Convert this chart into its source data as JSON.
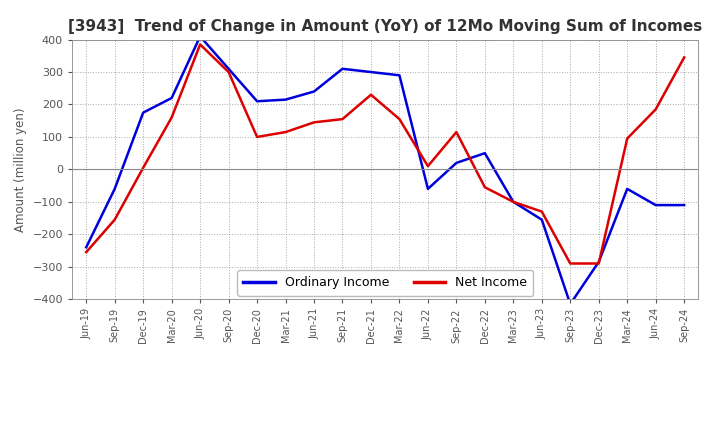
{
  "title": "[3943]  Trend of Change in Amount (YoY) of 12Mo Moving Sum of Incomes",
  "ylabel": "Amount (million yen)",
  "background_color": "#ffffff",
  "plot_bg_color": "#ffffff",
  "grid_color": "#aaaaaa",
  "ylim": [
    -400,
    400
  ],
  "yticks": [
    -400,
    -300,
    -200,
    -100,
    0,
    100,
    200,
    300,
    400
  ],
  "labels": [
    "Jun-19",
    "Sep-19",
    "Dec-19",
    "Mar-20",
    "Jun-20",
    "Sep-20",
    "Dec-20",
    "Mar-21",
    "Jun-21",
    "Sep-21",
    "Dec-21",
    "Mar-22",
    "Jun-22",
    "Sep-22",
    "Dec-22",
    "Mar-23",
    "Jun-23",
    "Sep-23",
    "Dec-23",
    "Mar-24",
    "Jun-24",
    "Sep-24"
  ],
  "ordinary_income": [
    -240,
    -60,
    175,
    220,
    410,
    310,
    210,
    215,
    240,
    310,
    300,
    290,
    -60,
    20,
    50,
    -100,
    -155,
    -415,
    -285,
    -60,
    -110,
    -110
  ],
  "net_income": [
    -255,
    -155,
    5,
    160,
    385,
    300,
    100,
    115,
    145,
    155,
    230,
    155,
    10,
    115,
    -55,
    -100,
    -130,
    -290,
    -290,
    95,
    185,
    345
  ],
  "ordinary_color": "#0000dd",
  "net_color": "#dd0000",
  "line_width": 1.8,
  "title_color": "#333333",
  "title_fontsize": 11,
  "tick_label_color": "#555555"
}
